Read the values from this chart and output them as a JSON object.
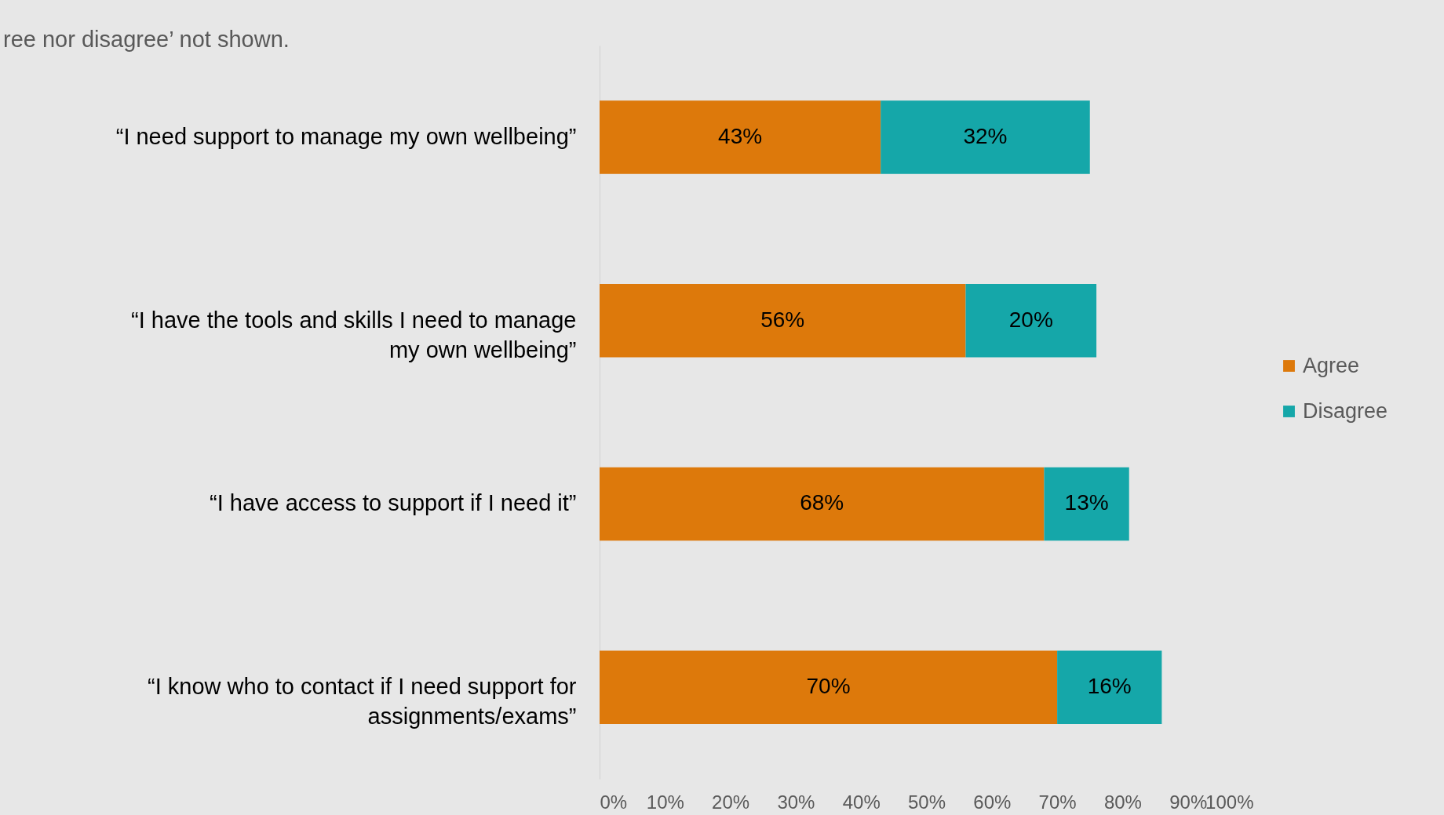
{
  "chart_data": {
    "type": "bar",
    "orientation": "horizontal",
    "stacked": true,
    "annotations": [
      "ree nor disagree’ not shown."
    ],
    "categories": [
      "“I need support to manage my own wellbeing”",
      "“I have the tools and skills I need to manage my own wellbeing”",
      "“I have access to support if I need it”",
      "“I know who to contact if I need support for assignments/exams”"
    ],
    "series": [
      {
        "name": "Agree",
        "color": "#dd790b",
        "values": [
          43,
          56,
          68,
          70
        ],
        "value_labels": [
          "43%",
          "56%",
          "68%",
          "70%"
        ]
      },
      {
        "name": "Disagree",
        "color": "#15a7a9",
        "values": [
          32,
          20,
          13,
          16
        ],
        "value_labels": [
          "32%",
          "20%",
          "13%",
          "16%"
        ]
      }
    ],
    "xlim": [
      0,
      100
    ],
    "xticks": [
      {
        "value": 0,
        "label": "0%"
      },
      {
        "value": 10,
        "label": "10%"
      },
      {
        "value": 20,
        "label": "20%"
      },
      {
        "value": 30,
        "label": "30%"
      },
      {
        "value": 40,
        "label": "40%"
      },
      {
        "value": 50,
        "label": "50%"
      },
      {
        "value": 60,
        "label": "60%"
      },
      {
        "value": 70,
        "label": "70%"
      },
      {
        "value": 80,
        "label": "80%"
      },
      {
        "value": 90,
        "label": "90%"
      },
      {
        "value": 100,
        "label": "100%"
      }
    ],
    "grid": false,
    "legend": "right"
  }
}
